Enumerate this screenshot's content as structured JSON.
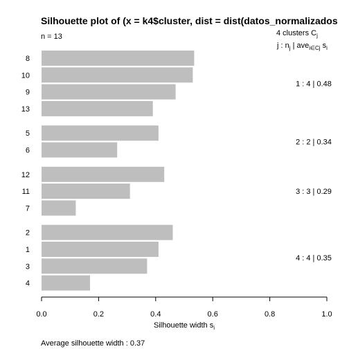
{
  "chart_data": {
    "type": "bar",
    "orientation": "horizontal",
    "title": "Silhouette plot of (x = k4$cluster, dist = dist(datos_normalizados",
    "subtitle": "n = 13",
    "xlabel": "Silhouette width s",
    "xlabel_sub": "i",
    "xlim": [
      0,
      1
    ],
    "x_ticks": [
      0,
      0.2,
      0.4,
      0.6,
      0.8,
      1
    ],
    "x_tick_labels": [
      "0.0",
      "0.2",
      "0.4",
      "0.6",
      "0.8",
      "1.0"
    ],
    "bar_color": "#bebebe",
    "grid": false,
    "legend_header_1": "4  clusters  C",
    "legend_header_1_sub": "j",
    "legend_header_2_j": "j :  n",
    "legend_header_2_nsub": "j",
    "legend_header_2_ave": " | ave",
    "legend_header_2_avesub": "i∈Cj",
    "legend_header_2_s": "  s",
    "legend_header_2_ssub": "i",
    "clusters": [
      {
        "label": "1 :  4  |  0.48",
        "bars": [
          {
            "obs": "8",
            "value": 0.535
          },
          {
            "obs": "10",
            "value": 0.53
          },
          {
            "obs": "9",
            "value": 0.47
          },
          {
            "obs": "13",
            "value": 0.39
          }
        ]
      },
      {
        "label": "2 :  2  |  0.34",
        "bars": [
          {
            "obs": "5",
            "value": 0.41
          },
          {
            "obs": "6",
            "value": 0.265
          }
        ]
      },
      {
        "label": "3 :  3  |  0.29",
        "bars": [
          {
            "obs": "12",
            "value": 0.43
          },
          {
            "obs": "11",
            "value": 0.31
          },
          {
            "obs": "7",
            "value": 0.12
          }
        ]
      },
      {
        "label": "4 :  4  |  0.35",
        "bars": [
          {
            "obs": "2",
            "value": 0.46
          },
          {
            "obs": "1",
            "value": 0.41
          },
          {
            "obs": "3",
            "value": 0.37
          },
          {
            "obs": "4",
            "value": 0.17
          }
        ]
      }
    ],
    "footer": "Average silhouette width :  0.37"
  }
}
